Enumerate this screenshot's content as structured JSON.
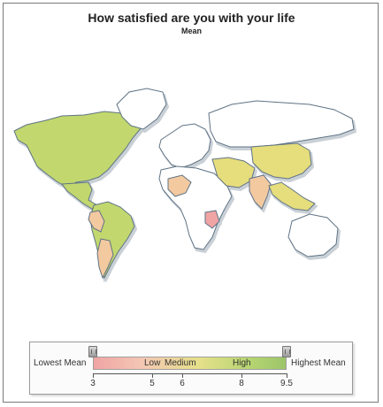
{
  "title": "How satisfied are you with your life",
  "subtitle": "Mean",
  "legend": {
    "lowest_label": "Lowest Mean",
    "highest_label": "Highest Mean",
    "bands": [
      "Low",
      "Medium",
      "High"
    ],
    "ticks": [
      "3",
      "5",
      "6",
      "8",
      "9.5"
    ],
    "min": 3,
    "max": 9.5
  },
  "colors": {
    "no_data": "#ffffff",
    "low": "#f0a4a4",
    "low_medium": "#f3c9a0",
    "medium": "#e6dd7c",
    "high": "#c2d86e",
    "highest": "#9cc56a",
    "border": "#5f7385",
    "shadow": "#c9d0d6"
  },
  "regions": [
    {
      "name": "North America",
      "level": "high"
    },
    {
      "name": "Greenland",
      "level": "no_data"
    },
    {
      "name": "Mexico",
      "level": "high"
    },
    {
      "name": "South America",
      "level": "high"
    },
    {
      "name": "Peru",
      "level": "low_medium"
    },
    {
      "name": "Argentina",
      "level": "low_medium"
    },
    {
      "name": "Europe",
      "level": "no_data"
    },
    {
      "name": "Africa",
      "level": "no_data"
    },
    {
      "name": "Mali",
      "level": "low_medium"
    },
    {
      "name": "Tanzania",
      "level": "low"
    },
    {
      "name": "Russia",
      "level": "no_data"
    },
    {
      "name": "Middle East",
      "level": "medium"
    },
    {
      "name": "India",
      "level": "low_medium"
    },
    {
      "name": "China",
      "level": "medium"
    },
    {
      "name": "Southeast Asia",
      "level": "medium"
    },
    {
      "name": "Australia",
      "level": "no_data"
    }
  ]
}
